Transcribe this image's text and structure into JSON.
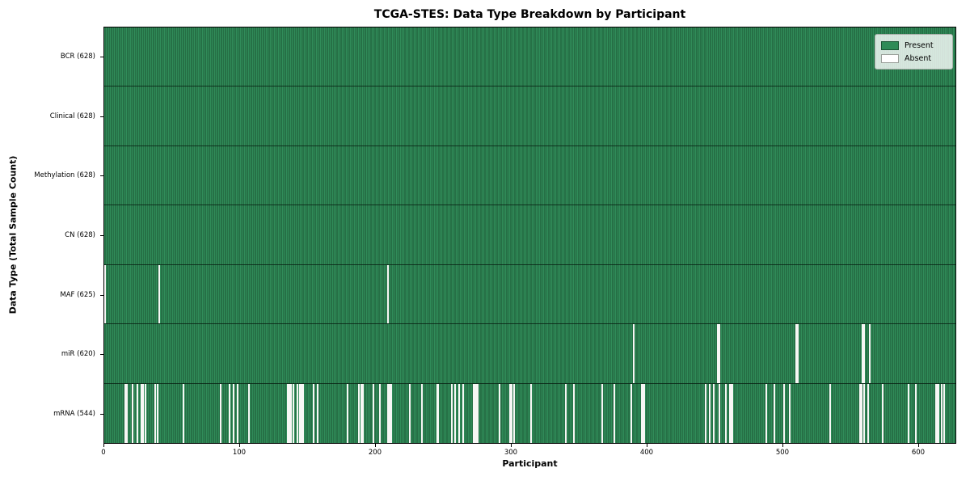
{
  "chart_data": {
    "type": "heatmap",
    "title": "TCGA-STES: Data Type Breakdown by Participant",
    "xlabel": "Participant",
    "ylabel": "Data Type (Total Sample Count)",
    "n_participants": 628,
    "x_ticks": [
      0,
      100,
      200,
      300,
      400,
      500,
      600
    ],
    "legend_position": "upper right",
    "grid": false,
    "colors": {
      "present": "#2e8b57",
      "present_edge": "#1b5434",
      "absent": "#ffffff",
      "plot_border": "#000000"
    },
    "legend": [
      {
        "label": "Present",
        "color": "#2e8b57"
      },
      {
        "label": "Absent",
        "color": "#ffffff"
      }
    ],
    "rows": [
      {
        "name": "BCR",
        "label": "BCR (628)",
        "present_count": 628,
        "absent_participants": []
      },
      {
        "name": "Clinical",
        "label": "Clinical (628)",
        "present_count": 628,
        "absent_participants": []
      },
      {
        "name": "Methylation",
        "label": "Methylation (628)",
        "present_count": 628,
        "absent_participants": []
      },
      {
        "name": "CN",
        "label": "CN (628)",
        "present_count": 628,
        "absent_participants": []
      },
      {
        "name": "MAF",
        "label": "MAF (625)",
        "present_count": 625,
        "absent_participants": [
          0,
          40,
          209
        ]
      },
      {
        "name": "miR",
        "label": "miR (620)",
        "present_count": 620,
        "absent_participants": [
          390,
          452,
          453,
          510,
          511,
          559,
          560,
          564
        ]
      },
      {
        "name": "mRNA",
        "label": "mRNA (544)",
        "present_count": 544,
        "absent_participants": [
          15,
          16,
          20,
          24,
          27,
          28,
          30,
          37,
          39,
          58,
          85,
          92,
          95,
          98,
          106,
          135,
          136,
          137,
          139,
          142,
          144,
          145,
          146,
          154,
          157,
          179,
          187,
          189,
          190,
          198,
          203,
          209,
          210,
          211,
          225,
          234,
          245,
          246,
          256,
          258,
          261,
          264,
          272,
          273,
          274,
          275,
          291,
          299,
          300,
          302,
          314,
          340,
          346,
          367,
          376,
          388,
          396,
          397,
          398,
          443,
          446,
          449,
          453,
          458,
          461,
          462,
          463,
          488,
          494,
          501,
          505,
          535,
          557,
          558,
          560,
          563,
          574,
          593,
          598,
          613,
          614,
          615,
          617,
          619
        ]
      }
    ]
  }
}
